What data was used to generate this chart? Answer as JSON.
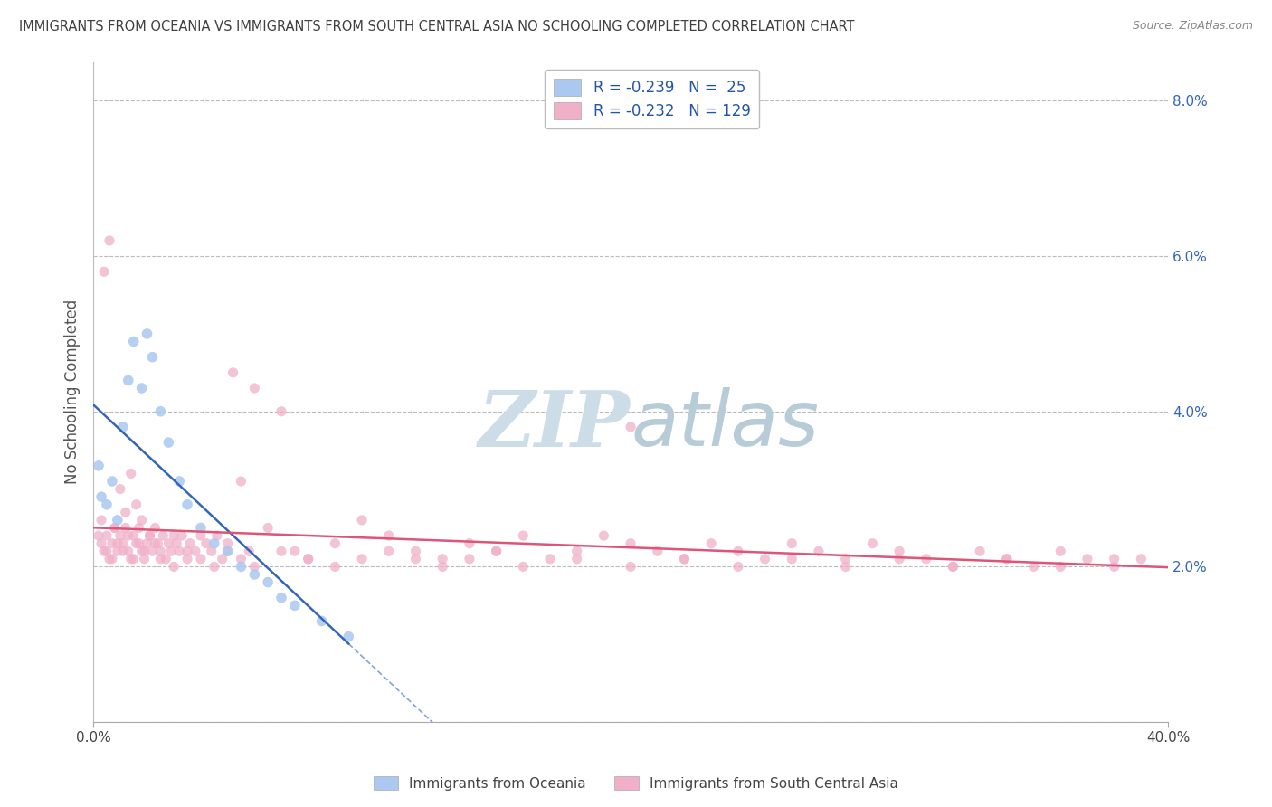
{
  "title": "IMMIGRANTS FROM OCEANIA VS IMMIGRANTS FROM SOUTH CENTRAL ASIA NO SCHOOLING COMPLETED CORRELATION CHART",
  "source": "Source: ZipAtlas.com",
  "ylabel": "No Schooling Completed",
  "xmin": 0.0,
  "xmax": 0.4,
  "ymin": 0.0,
  "ymax": 0.085,
  "yticks": [
    0.0,
    0.02,
    0.04,
    0.06,
    0.08
  ],
  "series1_label": "Immigrants from Oceania",
  "series2_label": "Immigrants from South Central Asia",
  "series1_R": "-0.239",
  "series1_N": "25",
  "series2_R": "-0.232",
  "series2_N": "129",
  "series1_color": "#aac8f0",
  "series2_color": "#f0b0c8",
  "series1_trend_color": "#3366bb",
  "series2_trend_color": "#dd5577",
  "watermark_color": "#ccdde8",
  "bg_color": "#ffffff",
  "grid_color": "#bbbbbb",
  "title_color": "#404040",
  "legend_text_color": "#2255aa",
  "legend_N_color": "#2255aa",
  "series1_x": [
    0.002,
    0.003,
    0.005,
    0.007,
    0.009,
    0.011,
    0.013,
    0.015,
    0.018,
    0.02,
    0.022,
    0.025,
    0.028,
    0.032,
    0.035,
    0.04,
    0.045,
    0.05,
    0.055,
    0.06,
    0.065,
    0.07,
    0.075,
    0.085,
    0.095
  ],
  "series1_y": [
    0.033,
    0.029,
    0.028,
    0.031,
    0.026,
    0.038,
    0.044,
    0.049,
    0.043,
    0.05,
    0.047,
    0.04,
    0.036,
    0.031,
    0.028,
    0.025,
    0.023,
    0.022,
    0.02,
    0.019,
    0.018,
    0.016,
    0.015,
    0.013,
    0.011
  ],
  "series2_x": [
    0.002,
    0.003,
    0.004,
    0.005,
    0.006,
    0.007,
    0.008,
    0.009,
    0.01,
    0.011,
    0.012,
    0.013,
    0.014,
    0.015,
    0.016,
    0.017,
    0.018,
    0.019,
    0.02,
    0.021,
    0.022,
    0.023,
    0.024,
    0.025,
    0.026,
    0.027,
    0.028,
    0.029,
    0.03,
    0.031,
    0.032,
    0.033,
    0.035,
    0.036,
    0.038,
    0.04,
    0.042,
    0.044,
    0.046,
    0.048,
    0.05,
    0.052,
    0.055,
    0.058,
    0.06,
    0.065,
    0.07,
    0.075,
    0.08,
    0.09,
    0.1,
    0.11,
    0.12,
    0.13,
    0.14,
    0.15,
    0.16,
    0.17,
    0.18,
    0.19,
    0.2,
    0.21,
    0.22,
    0.23,
    0.24,
    0.25,
    0.26,
    0.27,
    0.28,
    0.29,
    0.3,
    0.31,
    0.32,
    0.33,
    0.34,
    0.35,
    0.36,
    0.37,
    0.38,
    0.39,
    0.003,
    0.005,
    0.007,
    0.009,
    0.011,
    0.013,
    0.015,
    0.017,
    0.019,
    0.021,
    0.023,
    0.025,
    0.03,
    0.035,
    0.04,
    0.045,
    0.05,
    0.055,
    0.06,
    0.07,
    0.08,
    0.09,
    0.1,
    0.11,
    0.12,
    0.13,
    0.14,
    0.15,
    0.16,
    0.18,
    0.2,
    0.22,
    0.24,
    0.26,
    0.28,
    0.3,
    0.32,
    0.34,
    0.36,
    0.38,
    0.004,
    0.006,
    0.008,
    0.01,
    0.012,
    0.014,
    0.016,
    0.018,
    0.2
  ],
  "series2_y": [
    0.024,
    0.026,
    0.022,
    0.024,
    0.021,
    0.023,
    0.025,
    0.022,
    0.024,
    0.023,
    0.025,
    0.022,
    0.021,
    0.024,
    0.023,
    0.025,
    0.022,
    0.021,
    0.023,
    0.024,
    0.022,
    0.025,
    0.023,
    0.022,
    0.024,
    0.021,
    0.023,
    0.022,
    0.024,
    0.023,
    0.022,
    0.024,
    0.021,
    0.023,
    0.022,
    0.024,
    0.023,
    0.022,
    0.024,
    0.021,
    0.023,
    0.045,
    0.031,
    0.022,
    0.043,
    0.025,
    0.04,
    0.022,
    0.021,
    0.023,
    0.026,
    0.024,
    0.022,
    0.021,
    0.023,
    0.022,
    0.024,
    0.021,
    0.022,
    0.024,
    0.023,
    0.022,
    0.021,
    0.023,
    0.022,
    0.021,
    0.023,
    0.022,
    0.021,
    0.023,
    0.022,
    0.021,
    0.02,
    0.022,
    0.021,
    0.02,
    0.022,
    0.021,
    0.02,
    0.021,
    0.023,
    0.022,
    0.021,
    0.023,
    0.022,
    0.024,
    0.021,
    0.023,
    0.022,
    0.024,
    0.023,
    0.021,
    0.02,
    0.022,
    0.021,
    0.02,
    0.022,
    0.021,
    0.02,
    0.022,
    0.021,
    0.02,
    0.021,
    0.022,
    0.021,
    0.02,
    0.021,
    0.022,
    0.02,
    0.021,
    0.02,
    0.021,
    0.02,
    0.021,
    0.02,
    0.021,
    0.02,
    0.021,
    0.02,
    0.021,
    0.058,
    0.062,
    0.025,
    0.03,
    0.027,
    0.032,
    0.028,
    0.026,
    0.038
  ]
}
